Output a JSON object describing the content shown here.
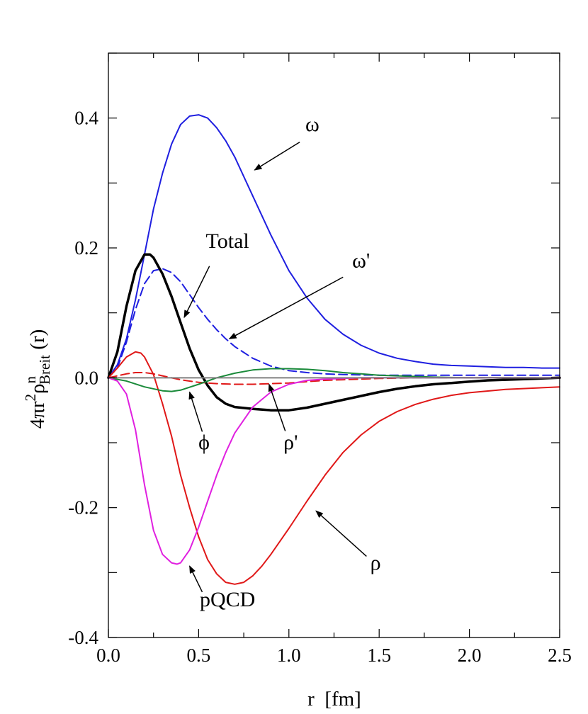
{
  "chart_data": {
    "type": "line",
    "xlabel": "r  [fm]",
    "ylabel": {
      "prefix": "4πr",
      "sup1": "2",
      "rho": "ρ",
      "sup2": "n",
      "sub": "Breit",
      "suffix": " (r)"
    },
    "xlim": [
      0.0,
      2.5
    ],
    "ylim": [
      -0.4,
      0.5
    ],
    "xticks": [
      0.0,
      0.5,
      1.0,
      1.5,
      2.0,
      2.5
    ],
    "xtick_labels": [
      "0.0",
      "0.5",
      "1.0",
      "1.5",
      "2.0",
      "2.5"
    ],
    "yticks_labeled": [
      -0.4,
      -0.2,
      0.0,
      0.2,
      0.4
    ],
    "ytick_labels": [
      "-0.4",
      "-0.2",
      "0.0",
      "0.2",
      "0.4"
    ],
    "grid": false,
    "series": [
      {
        "name": "ω",
        "color": "#1f1fe0",
        "style": "solid",
        "width": 2,
        "x": [
          0.0,
          0.05,
          0.1,
          0.15,
          0.2,
          0.25,
          0.3,
          0.35,
          0.4,
          0.45,
          0.5,
          0.55,
          0.6,
          0.65,
          0.7,
          0.8,
          0.9,
          1.0,
          1.1,
          1.2,
          1.3,
          1.4,
          1.5,
          1.6,
          1.7,
          1.8,
          1.9,
          2.0,
          2.1,
          2.2,
          2.3,
          2.4,
          2.5
        ],
        "y": [
          0.0,
          0.02,
          0.06,
          0.12,
          0.19,
          0.26,
          0.315,
          0.36,
          0.39,
          0.403,
          0.405,
          0.4,
          0.385,
          0.365,
          0.34,
          0.28,
          0.22,
          0.165,
          0.123,
          0.09,
          0.067,
          0.05,
          0.038,
          0.03,
          0.025,
          0.021,
          0.019,
          0.018,
          0.017,
          0.016,
          0.016,
          0.015,
          0.015
        ]
      },
      {
        "name": "ω'",
        "color": "#1f1fe0",
        "style": "dashed",
        "width": 2,
        "x": [
          0.0,
          0.05,
          0.1,
          0.15,
          0.2,
          0.25,
          0.3,
          0.35,
          0.4,
          0.45,
          0.5,
          0.55,
          0.6,
          0.65,
          0.7,
          0.8,
          0.9,
          1.0,
          1.1,
          1.2,
          1.3,
          1.5,
          1.7,
          2.0,
          2.5
        ],
        "y": [
          0.0,
          0.015,
          0.055,
          0.105,
          0.145,
          0.165,
          0.168,
          0.162,
          0.148,
          0.128,
          0.108,
          0.09,
          0.074,
          0.06,
          0.048,
          0.03,
          0.018,
          0.011,
          0.008,
          0.006,
          0.005,
          0.004,
          0.004,
          0.004,
          0.004
        ]
      },
      {
        "name": "Total",
        "color": "#000000",
        "style": "solid",
        "width": 3.5,
        "x": [
          0.0,
          0.05,
          0.1,
          0.15,
          0.2,
          0.23,
          0.25,
          0.3,
          0.35,
          0.4,
          0.45,
          0.5,
          0.55,
          0.6,
          0.65,
          0.7,
          0.8,
          0.9,
          1.0,
          1.1,
          1.2,
          1.3,
          1.4,
          1.5,
          1.6,
          1.7,
          1.8,
          1.9,
          2.0,
          2.1,
          2.2,
          2.3,
          2.4,
          2.5
        ],
        "y": [
          0.0,
          0.04,
          0.11,
          0.165,
          0.19,
          0.19,
          0.185,
          0.16,
          0.125,
          0.085,
          0.045,
          0.012,
          -0.012,
          -0.03,
          -0.04,
          -0.045,
          -0.048,
          -0.05,
          -0.05,
          -0.046,
          -0.04,
          -0.034,
          -0.028,
          -0.022,
          -0.017,
          -0.013,
          -0.01,
          -0.008,
          -0.006,
          -0.004,
          -0.003,
          -0.002,
          -0.001,
          0.0
        ]
      },
      {
        "name": "ρ",
        "color": "#e01818",
        "style": "solid",
        "width": 2,
        "x": [
          0.0,
          0.05,
          0.1,
          0.15,
          0.18,
          0.2,
          0.25,
          0.3,
          0.35,
          0.4,
          0.45,
          0.5,
          0.55,
          0.6,
          0.65,
          0.7,
          0.75,
          0.8,
          0.85,
          0.9,
          1.0,
          1.1,
          1.2,
          1.3,
          1.4,
          1.5,
          1.6,
          1.7,
          1.8,
          1.9,
          2.0,
          2.2,
          2.5
        ],
        "y": [
          0.0,
          0.015,
          0.032,
          0.04,
          0.038,
          0.032,
          0.005,
          -0.04,
          -0.09,
          -0.15,
          -0.2,
          -0.245,
          -0.28,
          -0.302,
          -0.315,
          -0.318,
          -0.315,
          -0.305,
          -0.29,
          -0.272,
          -0.232,
          -0.19,
          -0.15,
          -0.115,
          -0.088,
          -0.067,
          -0.052,
          -0.041,
          -0.033,
          -0.027,
          -0.023,
          -0.018,
          -0.014
        ]
      },
      {
        "name": "ρ'",
        "color": "#e01818",
        "style": "dashed",
        "width": 2,
        "x": [
          0.0,
          0.05,
          0.1,
          0.15,
          0.2,
          0.25,
          0.3,
          0.4,
          0.5,
          0.6,
          0.7,
          0.8,
          0.9,
          1.0,
          1.1,
          1.2,
          1.3,
          1.4,
          1.5,
          1.7,
          2.0,
          2.5
        ],
        "y": [
          0.0,
          0.003,
          0.006,
          0.008,
          0.008,
          0.006,
          0.003,
          -0.003,
          -0.007,
          -0.009,
          -0.01,
          -0.01,
          -0.009,
          -0.008,
          -0.006,
          -0.004,
          -0.003,
          -0.002,
          -0.001,
          0.0,
          0.0,
          0.0
        ]
      },
      {
        "name": "ϕ",
        "color": "#1a8a3a",
        "style": "solid",
        "width": 2,
        "x": [
          0.0,
          0.1,
          0.2,
          0.3,
          0.35,
          0.4,
          0.5,
          0.6,
          0.7,
          0.8,
          0.9,
          1.0,
          1.1,
          1.2,
          1.3,
          1.4,
          1.5,
          1.6,
          1.8,
          2.0,
          2.5
        ],
        "y": [
          0.0,
          -0.005,
          -0.014,
          -0.02,
          -0.021,
          -0.019,
          -0.01,
          0.0,
          0.007,
          0.012,
          0.014,
          0.014,
          0.013,
          0.011,
          0.008,
          0.006,
          0.004,
          0.003,
          0.001,
          0.0,
          0.0
        ]
      },
      {
        "name": "pQCD",
        "color": "#e020e0",
        "style": "solid",
        "width": 2,
        "x": [
          0.0,
          0.05,
          0.1,
          0.15,
          0.2,
          0.25,
          0.3,
          0.35,
          0.38,
          0.4,
          0.45,
          0.5,
          0.55,
          0.6,
          0.65,
          0.7,
          0.8,
          0.9,
          1.0,
          1.1,
          1.2,
          1.3,
          1.4,
          1.5,
          1.7,
          2.0,
          2.5
        ],
        "y": [
          0.0,
          -0.005,
          -0.025,
          -0.08,
          -0.165,
          -0.235,
          -0.272,
          -0.285,
          -0.287,
          -0.285,
          -0.265,
          -0.23,
          -0.19,
          -0.15,
          -0.115,
          -0.085,
          -0.045,
          -0.022,
          -0.01,
          -0.004,
          -0.002,
          -0.001,
          0.0,
          0.0,
          0.0,
          0.0,
          0.0
        ]
      }
    ],
    "annotations": [
      {
        "text": "ω",
        "label_x": 1.13,
        "label_y": 0.38,
        "tail_x": 1.06,
        "tail_y": 0.363,
        "head_x": 0.81,
        "head_y": 0.32
      },
      {
        "text": "Total",
        "label_x": 0.66,
        "label_y": 0.2,
        "tail_x": 0.56,
        "tail_y": 0.172,
        "head_x": 0.42,
        "head_y": 0.093
      },
      {
        "text": "ω'",
        "label_x": 1.4,
        "label_y": 0.17,
        "tail_x": 1.3,
        "tail_y": 0.155,
        "head_x": 0.67,
        "head_y": 0.06
      },
      {
        "text": "ϕ",
        "label_x": 0.53,
        "label_y": -0.11,
        "tail_x": 0.52,
        "tail_y": -0.083,
        "head_x": 0.45,
        "head_y": -0.022
      },
      {
        "text": "ρ'",
        "label_x": 1.01,
        "label_y": -0.11,
        "tail_x": 0.98,
        "tail_y": -0.082,
        "head_x": 0.89,
        "head_y": -0.01
      },
      {
        "text": "ρ",
        "label_x": 1.48,
        "label_y": -0.295,
        "tail_x": 1.43,
        "tail_y": -0.275,
        "head_x": 1.15,
        "head_y": -0.205
      },
      {
        "text": "pQCD",
        "label_x": 0.66,
        "label_y": -0.352,
        "tail_x": 0.52,
        "tail_y": -0.33,
        "head_x": 0.45,
        "head_y": -0.29
      }
    ]
  }
}
